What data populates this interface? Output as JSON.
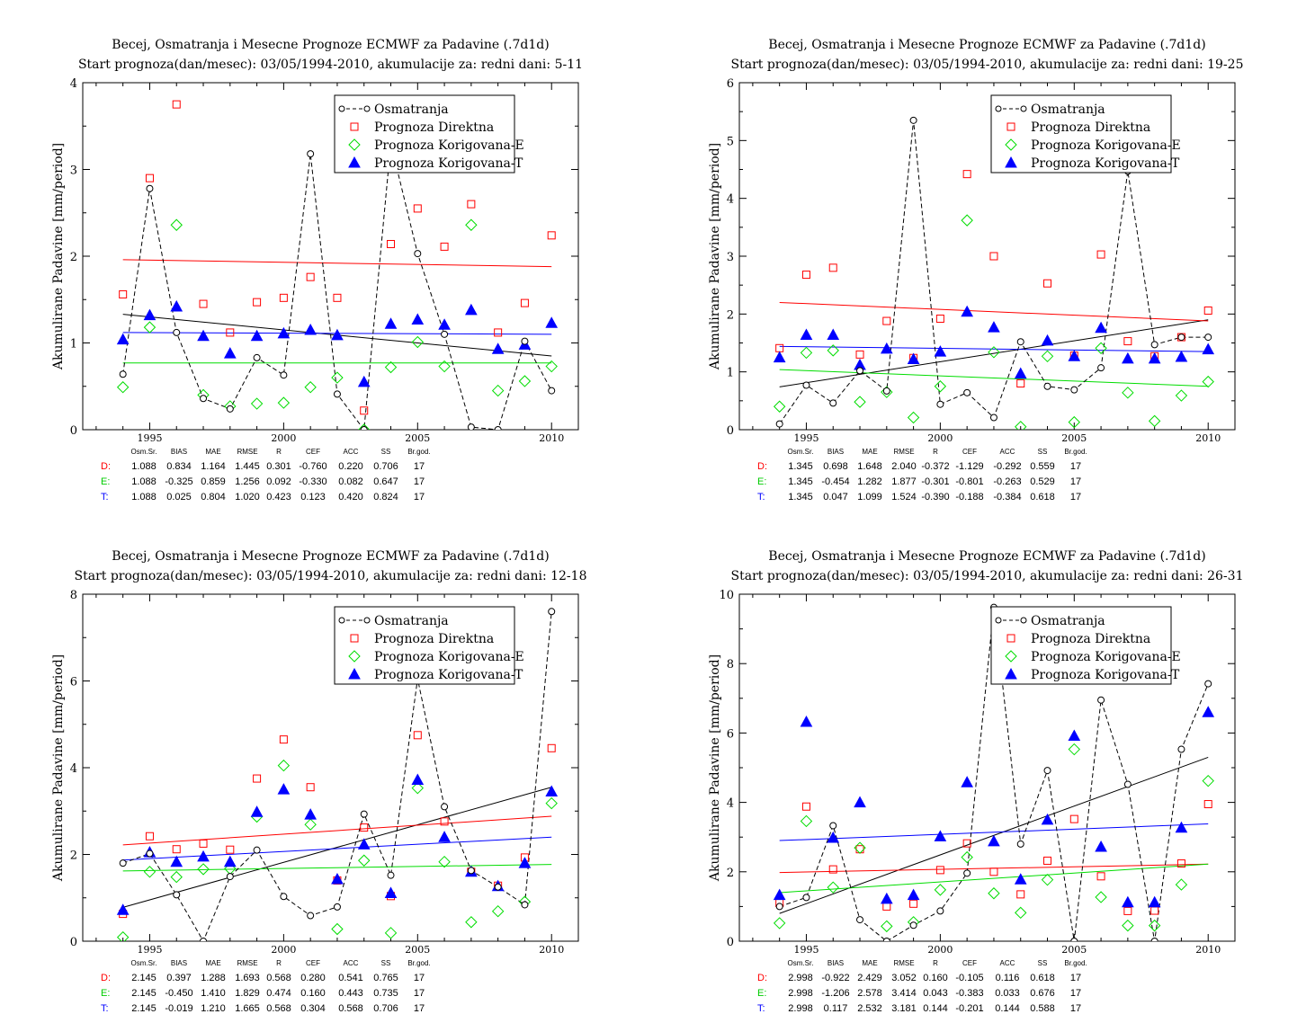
{
  "chart_data": [
    {
      "type": "scatter",
      "title": "Becej, Osmatranja i Mesecne Prognoze ECMWF za Padavine (.7d1d)",
      "subtitle": "Start prognoza(dan/mesec): 03/05/1994-2010, akumulacije za: redni dani: 5-11",
      "ylabel": "Akumulirane Padavine [mm/period]",
      "xlim": [
        1992.5,
        2011
      ],
      "ylim": [
        0,
        4
      ],
      "xticks": [
        1995,
        2000,
        2005,
        2010
      ],
      "yticks": [
        0,
        1,
        2,
        3,
        4
      ],
      "x": [
        1994,
        1995,
        1996,
        1997,
        1998,
        1999,
        2000,
        2001,
        2002,
        2003,
        2004,
        2005,
        2006,
        2007,
        2008,
        2009,
        2010
      ],
      "series": [
        {
          "name": "Osmatranja",
          "color": "#000000",
          "marker": "circle",
          "dashed": true,
          "values": [
            0.64,
            2.78,
            1.12,
            0.36,
            0.24,
            0.83,
            0.63,
            3.18,
            0.41,
            0.0,
            3.3,
            2.03,
            1.1,
            0.03,
            0.0,
            1.02,
            0.45
          ],
          "trend": [
            1.33,
            0.85
          ]
        },
        {
          "name": "Prognoza Direktna",
          "color": "#ff0000",
          "marker": "square",
          "values": [
            1.56,
            2.9,
            3.75,
            1.45,
            1.12,
            1.47,
            1.52,
            1.76,
            1.52,
            0.22,
            2.14,
            2.55,
            2.11,
            2.6,
            1.12,
            1.46,
            2.24
          ],
          "trend": [
            1.96,
            1.88
          ]
        },
        {
          "name": "Prognoza Korigovana-E",
          "color": "#00dd00",
          "marker": "diamond",
          "values": [
            0.49,
            1.18,
            2.36,
            0.4,
            0.27,
            0.3,
            0.31,
            0.49,
            0.6,
            0.0,
            0.72,
            1.01,
            0.73,
            2.36,
            0.45,
            0.56,
            0.73
          ],
          "trend": [
            0.77,
            0.77
          ]
        },
        {
          "name": "Prognoza Korigovana-T",
          "color": "#0000ff",
          "marker": "triangle",
          "values": [
            1.04,
            1.32,
            1.42,
            1.08,
            0.88,
            1.08,
            1.11,
            1.15,
            1.09,
            0.55,
            1.22,
            1.27,
            1.21,
            1.38,
            0.93,
            0.98,
            1.23
          ],
          "trend": [
            1.12,
            1.1
          ]
        }
      ],
      "stats_header": [
        "Osm.Sr.",
        "BIAS",
        "MAE",
        "RMSE",
        "R",
        "CEF",
        "ACC",
        "SS",
        "Br.god."
      ],
      "stats": [
        {
          "label": "D:",
          "color": "#ff0000",
          "values": [
            "1.088",
            "0.834",
            "1.164",
            "1.445",
            "0.301",
            "-0.760",
            "0.220",
            "0.706",
            "17"
          ]
        },
        {
          "label": "E:",
          "color": "#00cc00",
          "values": [
            "1.088",
            "-0.325",
            "0.859",
            "1.256",
            "0.092",
            "-0.330",
            "0.082",
            "0.647",
            "17"
          ]
        },
        {
          "label": "T:",
          "color": "#0000ff",
          "values": [
            "1.088",
            "0.025",
            "0.804",
            "1.020",
            "0.423",
            "0.123",
            "0.420",
            "0.824",
            "17"
          ]
        }
      ]
    },
    {
      "type": "scatter",
      "title": "Becej, Osmatranja i Mesecne Prognoze ECMWF za Padavine (.7d1d)",
      "subtitle": "Start prognoza(dan/mesec): 03/05/1994-2010, akumulacije za: redni dani: 19-25",
      "ylabel": "Akumulirane Padavine [mm/period]",
      "xlim": [
        1992.5,
        2011
      ],
      "ylim": [
        0,
        6
      ],
      "xticks": [
        1995,
        2000,
        2005,
        2010
      ],
      "yticks": [
        0,
        1,
        2,
        3,
        4,
        5,
        6
      ],
      "x": [
        1994,
        1995,
        1996,
        1997,
        1998,
        1999,
        2000,
        2001,
        2002,
        2003,
        2004,
        2005,
        2006,
        2007,
        2008,
        2009,
        2010
      ],
      "series": [
        {
          "name": "Osmatranja",
          "color": "#000000",
          "marker": "circle",
          "dashed": true,
          "values": [
            0.1,
            0.77,
            0.46,
            1.02,
            0.67,
            5.35,
            0.44,
            0.64,
            0.21,
            1.52,
            0.75,
            0.69,
            1.07,
            4.47,
            1.47,
            1.6,
            1.6
          ],
          "trend": [
            0.74,
            1.9
          ]
        },
        {
          "name": "Prognoza Direktna",
          "color": "#ff0000",
          "marker": "square",
          "values": [
            1.41,
            2.68,
            2.8,
            1.3,
            1.88,
            1.24,
            1.92,
            4.42,
            3.0,
            0.8,
            2.53,
            1.28,
            3.03,
            1.53,
            1.27,
            1.6,
            2.06
          ],
          "trend": [
            2.2,
            1.88
          ]
        },
        {
          "name": "Prognoza Korigovana-E",
          "color": "#00dd00",
          "marker": "diamond",
          "values": [
            0.4,
            1.33,
            1.37,
            0.48,
            0.65,
            0.21,
            0.75,
            3.62,
            1.34,
            0.05,
            1.27,
            0.13,
            1.41,
            0.64,
            0.15,
            0.59,
            0.83
          ],
          "trend": [
            1.04,
            0.75
          ]
        },
        {
          "name": "Prognoza Korigovana-T",
          "color": "#0000ff",
          "marker": "triangle",
          "values": [
            1.25,
            1.64,
            1.64,
            1.12,
            1.4,
            1.22,
            1.35,
            2.04,
            1.77,
            0.97,
            1.54,
            1.27,
            1.76,
            1.23,
            1.23,
            1.26,
            1.39
          ],
          "trend": [
            1.44,
            1.35
          ]
        }
      ],
      "stats_header": [
        "Osm.Sr.",
        "BIAS",
        "MAE",
        "RMSE",
        "R",
        "CEF",
        "ACC",
        "SS",
        "Br.god."
      ],
      "stats": [
        {
          "label": "D:",
          "color": "#ff0000",
          "values": [
            "1.345",
            "0.698",
            "1.648",
            "2.040",
            "-0.372",
            "-1.129",
            "-0.292",
            "0.559",
            "17"
          ]
        },
        {
          "label": "E:",
          "color": "#00cc00",
          "values": [
            "1.345",
            "-0.454",
            "1.282",
            "1.877",
            "-0.301",
            "-0.801",
            "-0.263",
            "0.529",
            "17"
          ]
        },
        {
          "label": "T:",
          "color": "#0000ff",
          "values": [
            "1.345",
            "0.047",
            "1.099",
            "1.524",
            "-0.390",
            "-0.188",
            "-0.384",
            "0.618",
            "17"
          ]
        }
      ]
    },
    {
      "type": "scatter",
      "title": "Becej, Osmatranja i Mesecne Prognoze ECMWF za Padavine (.7d1d)",
      "subtitle": "Start prognoza(dan/mesec): 03/05/1994-2010, akumulacije za: redni dani: 12-18",
      "ylabel": "Akumulirane Padavine [mm/period]",
      "xlim": [
        1992.5,
        2011
      ],
      "ylim": [
        0,
        8
      ],
      "xticks": [
        1995,
        2000,
        2005,
        2010
      ],
      "yticks": [
        0,
        2,
        4,
        6,
        8
      ],
      "x": [
        1994,
        1995,
        1996,
        1997,
        1998,
        1999,
        2000,
        2001,
        2002,
        2003,
        2004,
        2005,
        2006,
        2007,
        2008,
        2009,
        2010
      ],
      "series": [
        {
          "name": "Osmatranja",
          "color": "#000000",
          "marker": "circle",
          "dashed": true,
          "values": [
            1.8,
            2.02,
            1.07,
            0.0,
            1.49,
            2.1,
            1.03,
            0.59,
            0.79,
            2.93,
            1.52,
            6.05,
            3.1,
            1.63,
            1.25,
            0.84,
            7.6
          ],
          "trend": [
            0.78,
            3.55
          ]
        },
        {
          "name": "Prognoza Direktna",
          "color": "#ff0000",
          "marker": "square",
          "values": [
            0.63,
            2.42,
            2.12,
            2.25,
            2.11,
            3.75,
            4.65,
            3.55,
            1.4,
            2.62,
            1.04,
            4.75,
            2.76,
            1.6,
            1.28,
            1.93,
            4.45
          ],
          "trend": [
            2.22,
            2.88
          ]
        },
        {
          "name": "Prognoza Korigovana-E",
          "color": "#00dd00",
          "marker": "diamond",
          "values": [
            0.09,
            1.6,
            1.48,
            1.66,
            1.67,
            2.87,
            4.05,
            2.69,
            0.28,
            1.86,
            0.19,
            3.53,
            1.83,
            0.44,
            0.69,
            0.91,
            3.18
          ],
          "trend": [
            1.62,
            1.77
          ]
        },
        {
          "name": "Prognoza Korigovana-T",
          "color": "#0000ff",
          "marker": "triangle",
          "values": [
            0.72,
            2.05,
            1.83,
            1.95,
            1.83,
            2.98,
            3.5,
            2.92,
            1.43,
            2.23,
            1.11,
            3.72,
            2.4,
            1.6,
            1.27,
            1.8,
            3.45
          ],
          "trend": [
            1.87,
            2.4
          ]
        }
      ],
      "stats_header": [
        "Osm.Sr.",
        "BIAS",
        "MAE",
        "RMSE",
        "R",
        "CEF",
        "ACC",
        "SS",
        "Br.god."
      ],
      "stats": [
        {
          "label": "D:",
          "color": "#ff0000",
          "values": [
            "2.145",
            "0.397",
            "1.288",
            "1.693",
            "0.568",
            "0.280",
            "0.541",
            "0.765",
            "17"
          ]
        },
        {
          "label": "E:",
          "color": "#00cc00",
          "values": [
            "2.145",
            "-0.450",
            "1.410",
            "1.829",
            "0.474",
            "0.160",
            "0.443",
            "0.735",
            "17"
          ]
        },
        {
          "label": "T:",
          "color": "#0000ff",
          "values": [
            "2.145",
            "-0.019",
            "1.210",
            "1.665",
            "0.568",
            "0.304",
            "0.568",
            "0.706",
            "17"
          ]
        }
      ]
    },
    {
      "type": "scatter",
      "title": "Becej, Osmatranja i Mesecne Prognoze ECMWF za Padavine (.7d1d)",
      "subtitle": "Start prognoza(dan/mesec): 03/05/1994-2010, akumulacije za: redni dani: 26-31",
      "ylabel": "Akumulirane Padavine [mm/period]",
      "xlim": [
        1992.5,
        2011
      ],
      "ylim": [
        0,
        10
      ],
      "xticks": [
        1995,
        2000,
        2005,
        2010
      ],
      "yticks": [
        0,
        2,
        4,
        6,
        8,
        10
      ],
      "x": [
        1994,
        1995,
        1996,
        1997,
        1998,
        1999,
        2000,
        2001,
        2002,
        2003,
        2004,
        2005,
        2006,
        2007,
        2008,
        2009,
        2010
      ],
      "series": [
        {
          "name": "Osmatranja",
          "color": "#000000",
          "marker": "circle",
          "dashed": true,
          "values": [
            1.0,
            1.26,
            3.33,
            0.62,
            0.0,
            0.46,
            0.87,
            1.96,
            9.62,
            2.8,
            4.92,
            0.0,
            6.95,
            4.52,
            0.0,
            5.53,
            7.42
          ],
          "trend": [
            0.8,
            5.3
          ]
        },
        {
          "name": "Prognoza Direktna",
          "color": "#ff0000",
          "marker": "square",
          "values": [
            1.1,
            3.88,
            2.07,
            2.65,
            1.0,
            1.08,
            2.05,
            2.82,
            2.0,
            1.35,
            2.32,
            3.52,
            1.87,
            0.87,
            0.88,
            2.24,
            3.95
          ],
          "trend": [
            1.98,
            2.22
          ]
        },
        {
          "name": "Prognoza Korigovana-E",
          "color": "#00dd00",
          "marker": "diamond",
          "values": [
            0.52,
            3.46,
            1.55,
            2.69,
            0.43,
            0.55,
            1.48,
            2.42,
            1.38,
            0.82,
            1.77,
            5.53,
            1.27,
            0.45,
            0.45,
            1.63,
            4.62
          ],
          "trend": [
            1.4,
            2.22
          ]
        },
        {
          "name": "Prognoza Korigovana-T",
          "color": "#0000ff",
          "marker": "triangle",
          "values": [
            1.33,
            6.32,
            2.98,
            4.0,
            1.22,
            1.33,
            3.02,
            4.58,
            2.88,
            1.78,
            3.5,
            5.92,
            2.72,
            1.12,
            1.12,
            3.27,
            6.6
          ],
          "trend": [
            2.9,
            3.38
          ]
        }
      ],
      "stats_header": [
        "Osm.Sr.",
        "BIAS",
        "MAE",
        "RMSE",
        "R",
        "CEF",
        "ACC",
        "SS",
        "Br.god."
      ],
      "stats": [
        {
          "label": "D:",
          "color": "#ff0000",
          "values": [
            "2.998",
            "-0.922",
            "2.429",
            "3.052",
            "0.160",
            "-0.105",
            "0.116",
            "0.618",
            "17"
          ]
        },
        {
          "label": "E:",
          "color": "#00cc00",
          "values": [
            "2.998",
            "-1.206",
            "2.578",
            "3.414",
            "0.043",
            "-0.383",
            "0.033",
            "0.676",
            "17"
          ]
        },
        {
          "label": "T:",
          "color": "#0000ff",
          "values": [
            "2.998",
            "0.117",
            "2.532",
            "3.181",
            "0.144",
            "-0.201",
            "0.144",
            "0.588",
            "17"
          ]
        }
      ]
    }
  ]
}
